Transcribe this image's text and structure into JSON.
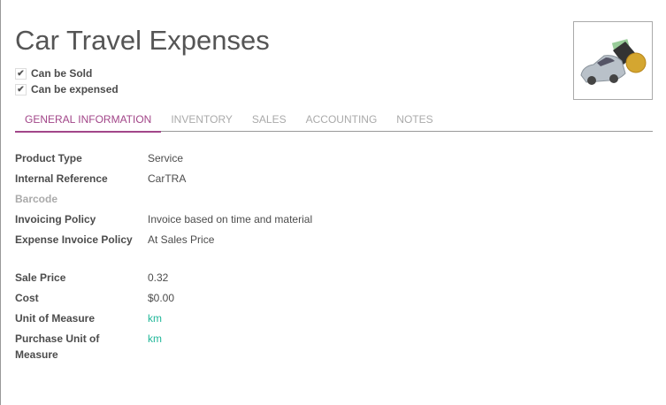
{
  "title": "Car Travel Expenses",
  "checkboxes": [
    {
      "label": "Can be Sold",
      "checked": true
    },
    {
      "label": "Can be expensed",
      "checked": true
    }
  ],
  "tabs": [
    "GENERAL INFORMATION",
    "INVENTORY",
    "SALES",
    "ACCOUNTING",
    "NOTES"
  ],
  "fields": [
    {
      "label": "Product Type",
      "value": "Service"
    },
    {
      "label": "Internal Reference",
      "value": "CarTRA"
    },
    {
      "label": "Barcode",
      "value": ""
    },
    {
      "label": "Invoicing Policy",
      "value": "Invoice based on time and material"
    },
    {
      "label": "Expense Invoice Policy",
      "value": "At Sales Price"
    },
    {
      "label": "Sale Price",
      "value": "0.32"
    },
    {
      "label": "Cost",
      "value": "$0.00"
    },
    {
      "label": "Unit of Measure",
      "value": "km"
    },
    {
      "label": "Purchase Unit of Measure",
      "value": "km"
    }
  ],
  "colors": {
    "accent": "#a24689",
    "link": "#21b799"
  }
}
